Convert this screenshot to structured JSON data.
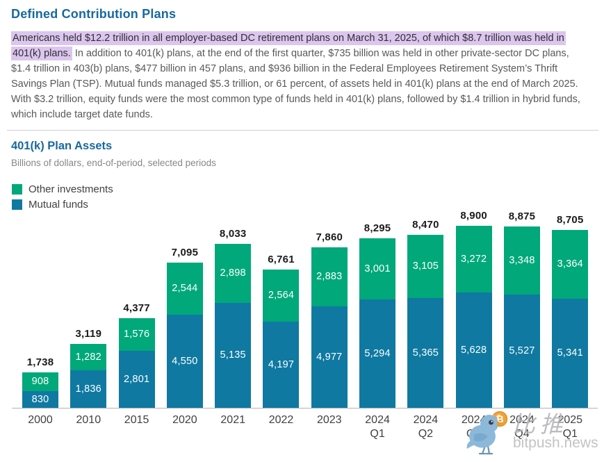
{
  "page": {
    "title": "Defined Contribution Plans"
  },
  "intro": {
    "highlighted_text": "Americans held $12.2 trillion in all employer-based DC retirement plans on March 31, 2025, of which $8.7 trillion was held in 401(k) plans.",
    "body_text": " In addition to 401(k) plans, at the end of the first quarter, $735 billion was held in other private-sector DC plans, $1.4 trillion in 403(b) plans, $477 billion in 457 plans, and $936 billion in the Federal Employees Retirement System’s Thrift Savings Plan (TSP). Mutual funds managed $5.3 trillion, or 61 percent, of assets held in 401(k) plans at the end of March 2025. With $3.2 trillion, equity funds were the most common type of funds held in 401(k) plans, followed by $1.4 trillion in hybrid funds, which include target date funds.",
    "highlight_color": "#dcc6ee"
  },
  "chart_data": {
    "type": "bar",
    "stacked": true,
    "title": "401(k) Plan Assets",
    "subtitle": "Billions of dollars, end-of-period, selected periods",
    "categories": [
      "2000",
      "2010",
      "2015",
      "2020",
      "2021",
      "2022",
      "2023",
      "2024 Q1",
      "2024 Q2",
      "2024 Q3",
      "2024 Q4",
      "2025 Q1"
    ],
    "series": [
      {
        "name": "Mutual funds",
        "color": "#0f79a1",
        "values": [
          830,
          1836,
          2801,
          4550,
          5135,
          4197,
          4977,
          5294,
          5365,
          5628,
          5527,
          5341
        ]
      },
      {
        "name": "Other investments",
        "color": "#00a87a",
        "values": [
          908,
          1282,
          1576,
          2544,
          2898,
          2564,
          2883,
          3001,
          3105,
          3272,
          3348,
          3364
        ]
      }
    ],
    "totals": [
      1738,
      3119,
      4377,
      7095,
      8033,
      6761,
      7860,
      8295,
      8470,
      8900,
      8875,
      8705
    ],
    "ylim": [
      0,
      8900
    ],
    "grid": false,
    "legend_position": "top-left",
    "legend_order": [
      "Other investments",
      "Mutual funds"
    ]
  },
  "watermark": {
    "bird_icon": "bird-with-bitcoin",
    "coin_symbol": "₿",
    "cn": "比推",
    "site": "bitpush.news"
  },
  "colors": {
    "heading": "#17699e",
    "axis_line": "#b3b3b3",
    "total_label": "#1b1b1d"
  }
}
